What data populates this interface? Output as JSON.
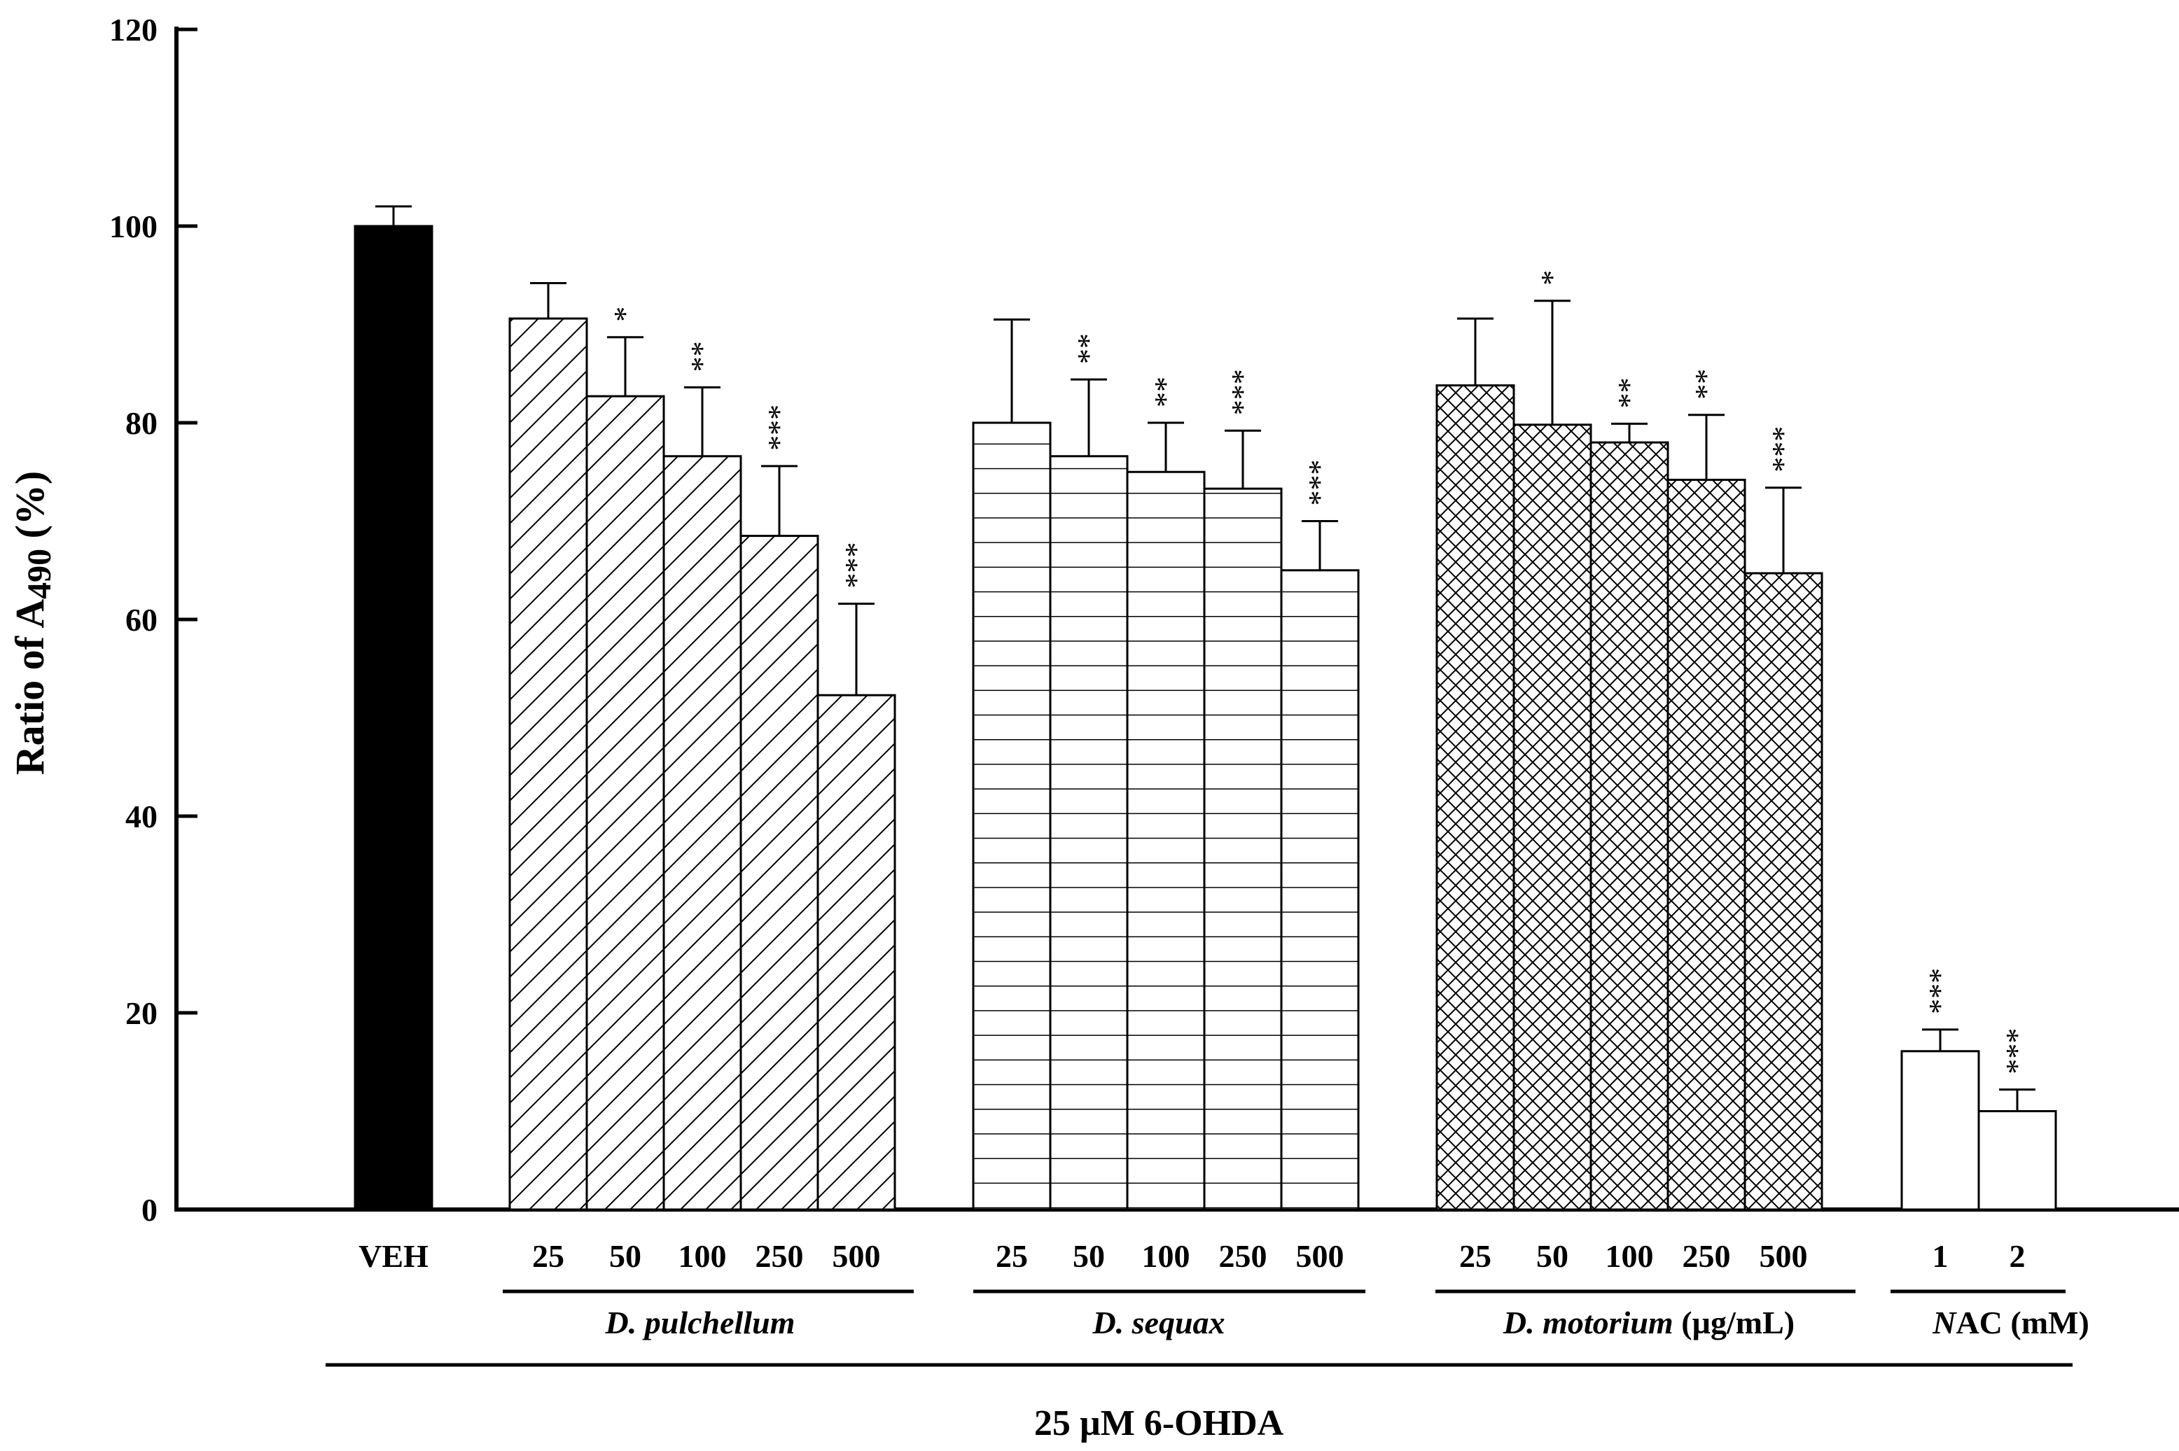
{
  "chart_data": {
    "type": "bar",
    "title": "",
    "ylabel_main": "Ratio of A",
    "ylabel_sub": "490",
    "ylabel_unit": " (%)",
    "ylim": [
      0,
      120
    ],
    "yticks": [
      "0",
      "20",
      "40",
      "60",
      "80",
      "100",
      "120"
    ],
    "treatment_label_a": "25 ",
    "treatment_label_mu": "µ",
    "treatment_label_b": "M 6-OHDA",
    "groups": [
      {
        "italic": "",
        "rest": "",
        "bars": [
          {
            "cat": "VEH",
            "value": 100,
            "err": 2,
            "sig": "",
            "pattern": "solid"
          }
        ]
      },
      {
        "italic": "D. pulchellum",
        "rest": "",
        "bars": [
          {
            "cat": "25",
            "value": 90.6,
            "err": 3.6,
            "sig": "",
            "pattern": "diag"
          },
          {
            "cat": "50",
            "value": 82.7,
            "err": 6.0,
            "sig": "*",
            "pattern": "diag"
          },
          {
            "cat": "100",
            "value": 76.6,
            "err": 7.0,
            "sig": "**",
            "pattern": "diag"
          },
          {
            "cat": "250",
            "value": 68.5,
            "err": 7.1,
            "sig": "***",
            "pattern": "diag"
          },
          {
            "cat": "500",
            "value": 52.3,
            "err": 9.3,
            "sig": "***",
            "pattern": "diag"
          }
        ]
      },
      {
        "italic": "D. sequax",
        "rest": "",
        "bars": [
          {
            "cat": "25",
            "value": 80.0,
            "err": 10.5,
            "sig": "",
            "pattern": "horiz"
          },
          {
            "cat": "50",
            "value": 76.6,
            "err": 7.8,
            "sig": "**",
            "pattern": "horiz"
          },
          {
            "cat": "100",
            "value": 75.0,
            "err": 5.0,
            "sig": "**",
            "pattern": "horiz"
          },
          {
            "cat": "250",
            "value": 73.3,
            "err": 5.9,
            "sig": "***",
            "pattern": "horiz"
          },
          {
            "cat": "500",
            "value": 65.0,
            "err": 5.0,
            "sig": "***",
            "pattern": "horiz"
          }
        ]
      },
      {
        "italic": "D. motorium",
        "rest": " (µg/mL)",
        "bars": [
          {
            "cat": "25",
            "value": 83.8,
            "err": 6.8,
            "sig": "",
            "pattern": "cross"
          },
          {
            "cat": "50",
            "value": 79.8,
            "err": 12.6,
            "sig": "*",
            "pattern": "cross"
          },
          {
            "cat": "100",
            "value": 78.0,
            "err": 1.9,
            "sig": "**",
            "pattern": "cross"
          },
          {
            "cat": "250",
            "value": 74.2,
            "err": 6.6,
            "sig": "**",
            "pattern": "cross"
          },
          {
            "cat": "500",
            "value": 64.7,
            "err": 8.7,
            "sig": "***",
            "pattern": "cross"
          }
        ]
      },
      {
        "italic": "N",
        "rest": "AC (mM)",
        "bars": [
          {
            "cat": "1",
            "value": 16.1,
            "err": 2.2,
            "sig": "***",
            "pattern": "open"
          },
          {
            "cat": "2",
            "value": 10.0,
            "err": 2.2,
            "sig": "***",
            "pattern": "open"
          }
        ]
      }
    ]
  }
}
